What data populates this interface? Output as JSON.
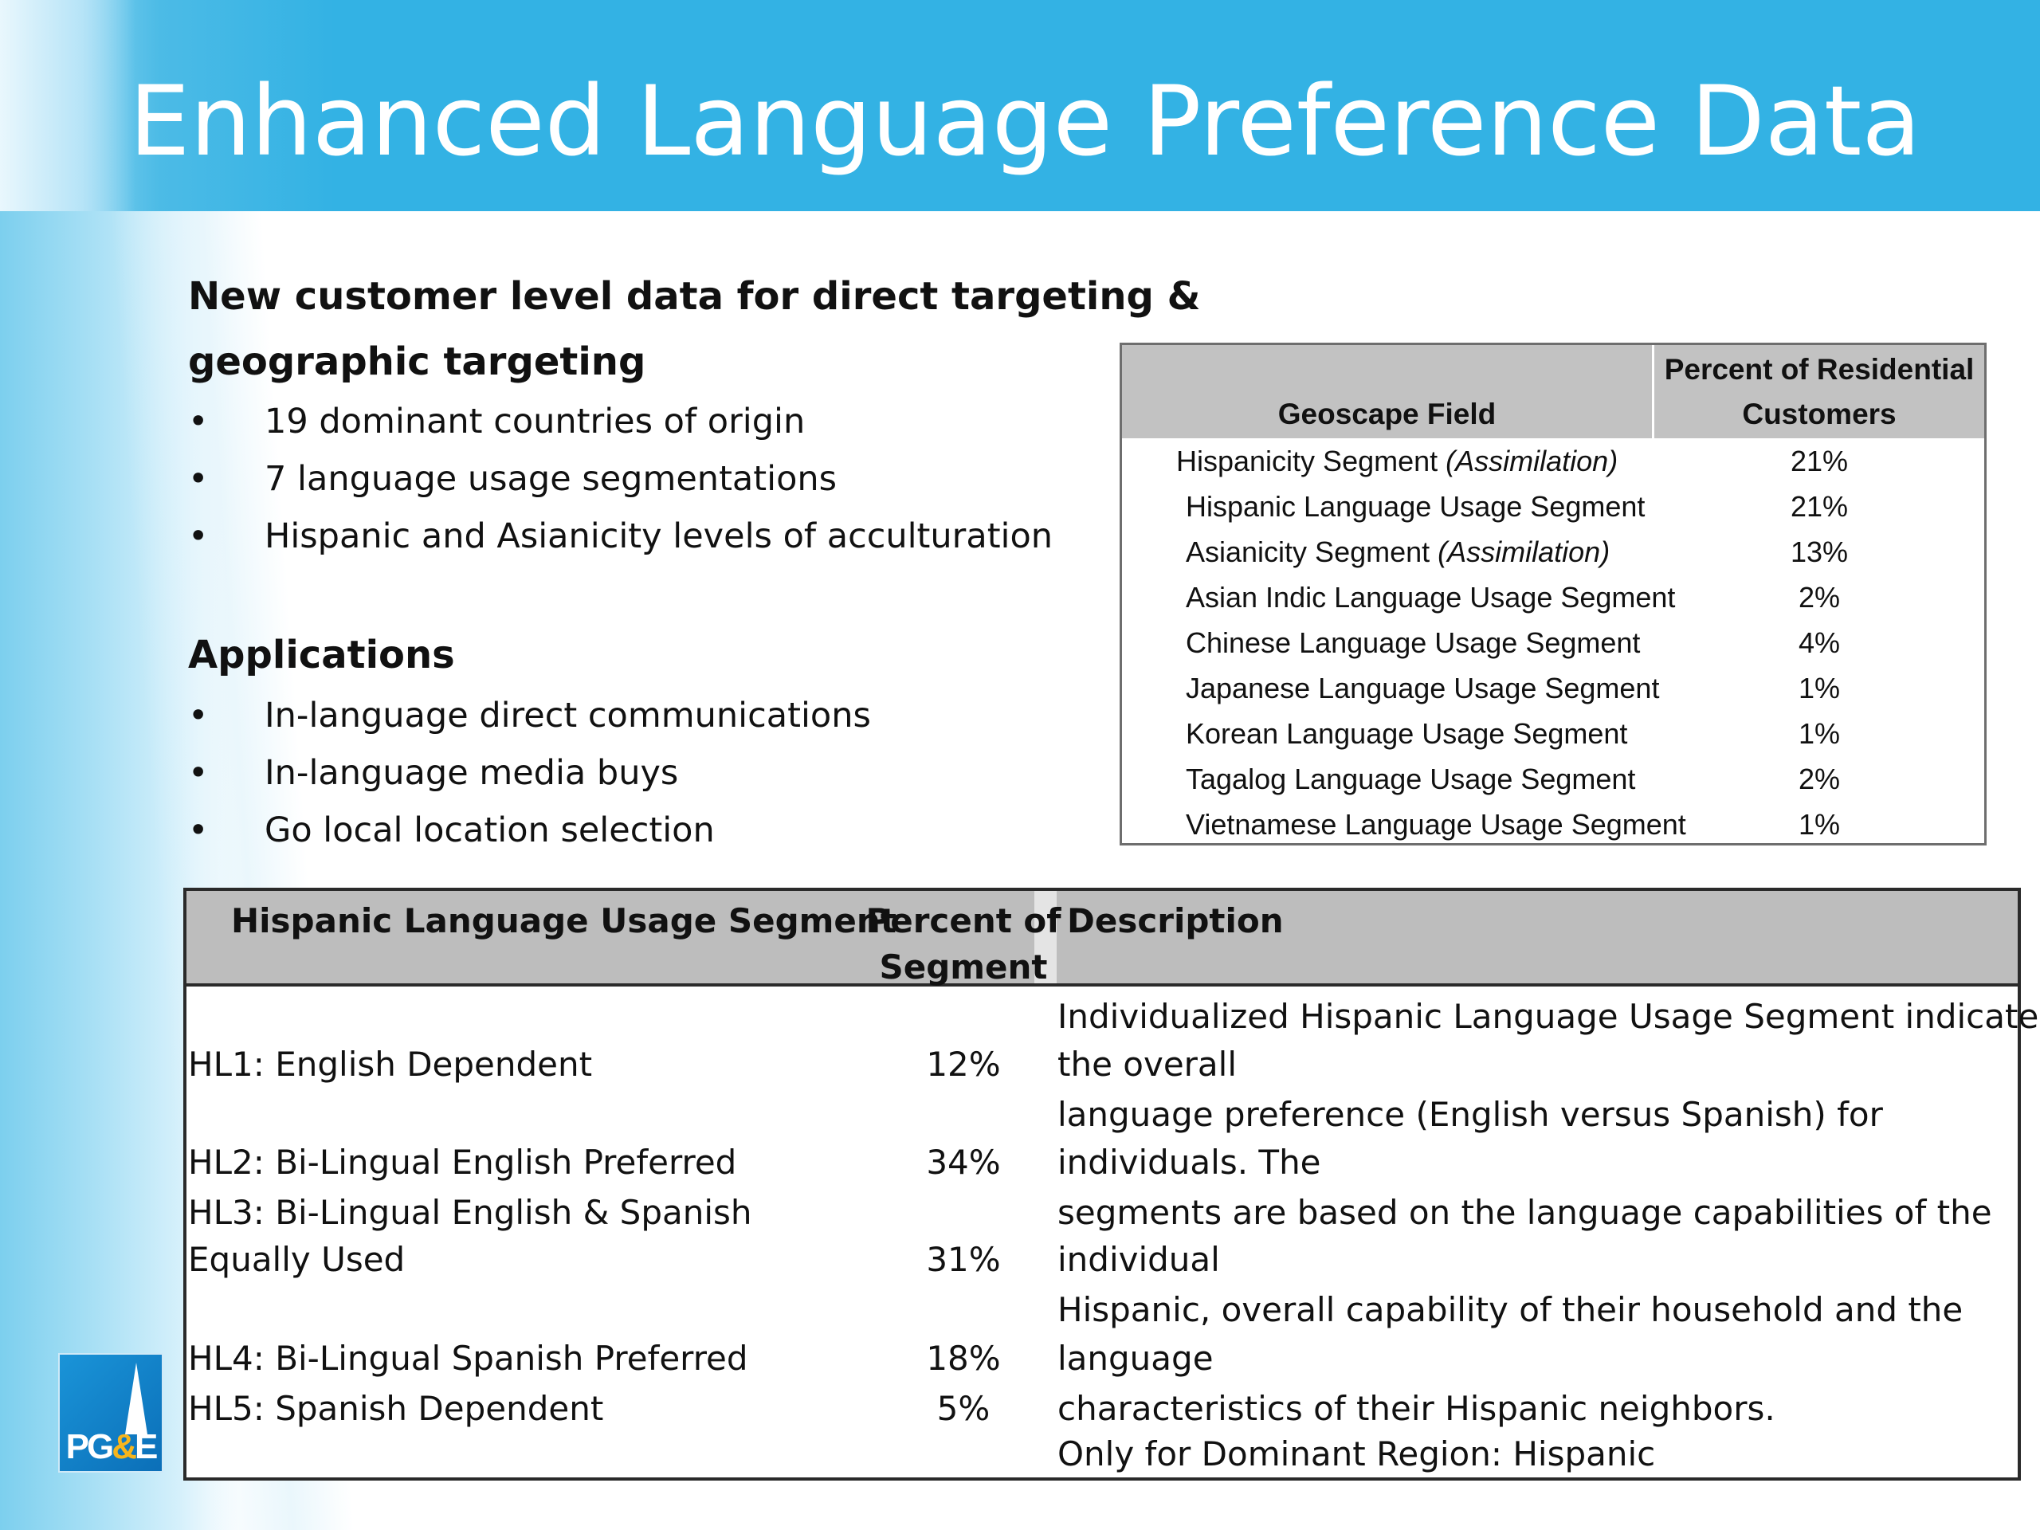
{
  "title": "Enhanced Language Preference Data",
  "intro": {
    "heading_line1": "New customer level data for direct targeting &",
    "heading_line2": "geographic targeting",
    "bullets": [
      "19 dominant countries of origin",
      "7 language usage segmentations",
      "Hispanic and Asianicity levels of acculturation"
    ]
  },
  "applications": {
    "heading": "Applications",
    "bullets": [
      "In-language direct communications",
      "In-language media buys",
      "Go local location selection"
    ]
  },
  "bullet_symbol": "•",
  "geoscape_table": {
    "header_field": "Geoscape Field",
    "header_pct_line1": "Percent of Residential",
    "header_pct_line2": "Customers",
    "rows": [
      {
        "field": "Hispanicity Segment ",
        "field_italic": "(Assimilation)",
        "pct": "21%"
      },
      {
        "field": "Hispanic Language Usage Segment",
        "field_italic": "",
        "pct": "21%"
      },
      {
        "field": "Asianicity Segment ",
        "field_italic": "(Assimilation)",
        "pct": "13%"
      },
      {
        "field": "Asian Indic Language Usage Segment",
        "field_italic": "",
        "pct": "2%"
      },
      {
        "field": "Chinese Language Usage Segment",
        "field_italic": "",
        "pct": "4%"
      },
      {
        "field": "Japanese Language Usage Segment",
        "field_italic": "",
        "pct": "1%"
      },
      {
        "field": "Korean Language Usage Segment",
        "field_italic": "",
        "pct": "1%"
      },
      {
        "field": "Tagalog Language Usage Segment",
        "field_italic": "",
        "pct": "2%"
      },
      {
        "field": "Vietnamese Language Usage Segment",
        "field_italic": "",
        "pct": "1%"
      }
    ]
  },
  "hispanic_table": {
    "header_segment": "Hispanic Language Usage Segment",
    "header_pct_line1": "Percent of",
    "header_pct_line2": "Segment",
    "header_desc": "Description",
    "segments": [
      {
        "line1": "HL1: English Dependent",
        "line2": "",
        "pct": "12%"
      },
      {
        "line1": "HL2: Bi-Lingual English Preferred",
        "line2": "",
        "pct": "34%"
      },
      {
        "line1": "HL3: Bi-Lingual English & Spanish",
        "line2": "Equally Used",
        "pct": "31%"
      },
      {
        "line1": "HL4: Bi-Lingual Spanish Preferred",
        "line2": "",
        "pct": "18%"
      },
      {
        "line1": "HL5: Spanish Dependent",
        "line2": "",
        "pct": "5%"
      }
    ],
    "description_lines": [
      "Individualized Hispanic Language Usage Segment indicates",
      "the overall",
      "language preference (English versus Spanish) for",
      "individuals. The",
      "segments are based on the language capabilities of the",
      "individual",
      "Hispanic, overall capability of their household and the",
      "language",
      "characteristics of their Hispanic neighbors.",
      "Only for Dominant Region:  Hispanic"
    ]
  },
  "logo": {
    "text_pg": "PG",
    "text_amp": "&",
    "text_e": "E"
  }
}
